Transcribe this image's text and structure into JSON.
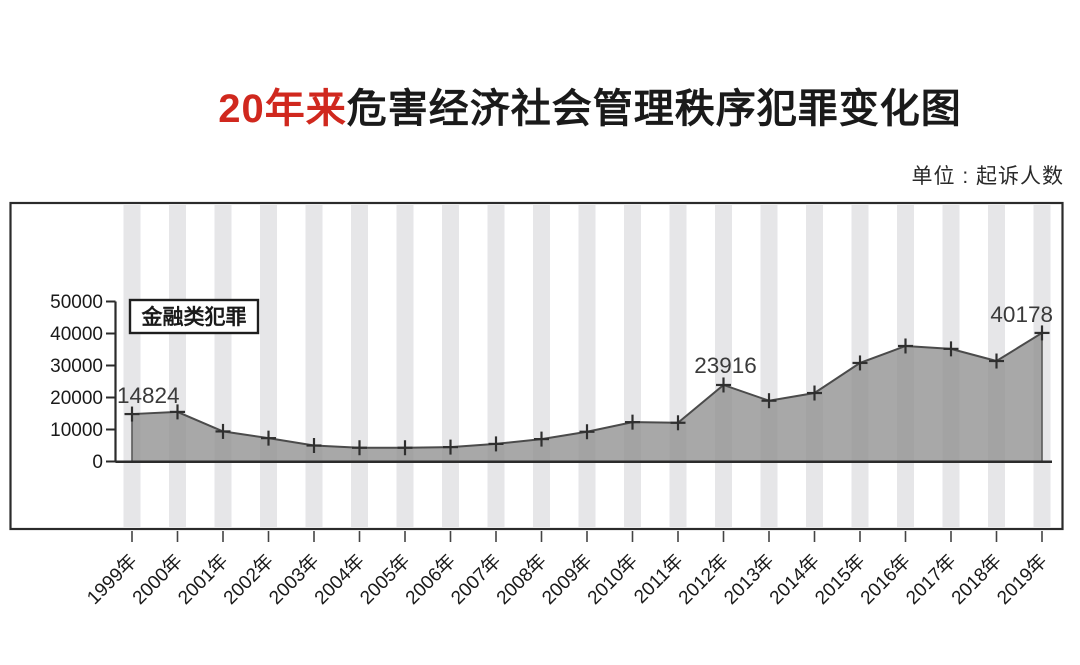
{
  "header": {
    "title_highlight": "20年来",
    "title_rest": "危害经济社会管理秩序犯罪变化图",
    "unit_label": "单位 : 起诉人数"
  },
  "legend": {
    "label": "金融类犯罪"
  },
  "chart_data": {
    "type": "area",
    "title": "20年来危害经济社会管理秩序犯罪变化图",
    "unit": "起诉人数",
    "series_name": "金融类犯罪",
    "categories": [
      "1999年",
      "2000年",
      "2001年",
      "2002年",
      "2003年",
      "2004年",
      "2005年",
      "2006年",
      "2007年",
      "2008年",
      "2009年",
      "2010年",
      "2011年",
      "2012年",
      "2013年",
      "2014年",
      "2015年",
      "2016年",
      "2017年",
      "2018年",
      "2019年"
    ],
    "values": [
      14824,
      15500,
      9400,
      7300,
      5000,
      4300,
      4300,
      4500,
      5500,
      7000,
      9300,
      12300,
      12100,
      23916,
      19000,
      21400,
      30800,
      36100,
      35200,
      31400,
      40178
    ],
    "labeled_points": [
      {
        "category": "1999年",
        "value": 14824
      },
      {
        "category": "2012年",
        "value": 23916
      },
      {
        "category": "2019年",
        "value": 40178
      }
    ],
    "ylim": [
      0,
      50000
    ],
    "yticks": [
      0,
      10000,
      20000,
      30000,
      40000,
      50000
    ],
    "xlabel": "",
    "ylabel": "",
    "legend_position": "top-left",
    "grid": "vertical-stripes",
    "marker": "plus",
    "colors": {
      "title_highlight": "#d0281e",
      "text": "#1a1a1a",
      "value_label": "#3a3a3a",
      "area_fill": "#909090",
      "line": "#4b4b4b",
      "marker": "#2f2f2f",
      "stripe": "#e6e6e8",
      "axis": "#2b2b2b",
      "background": "#ffffff"
    }
  }
}
